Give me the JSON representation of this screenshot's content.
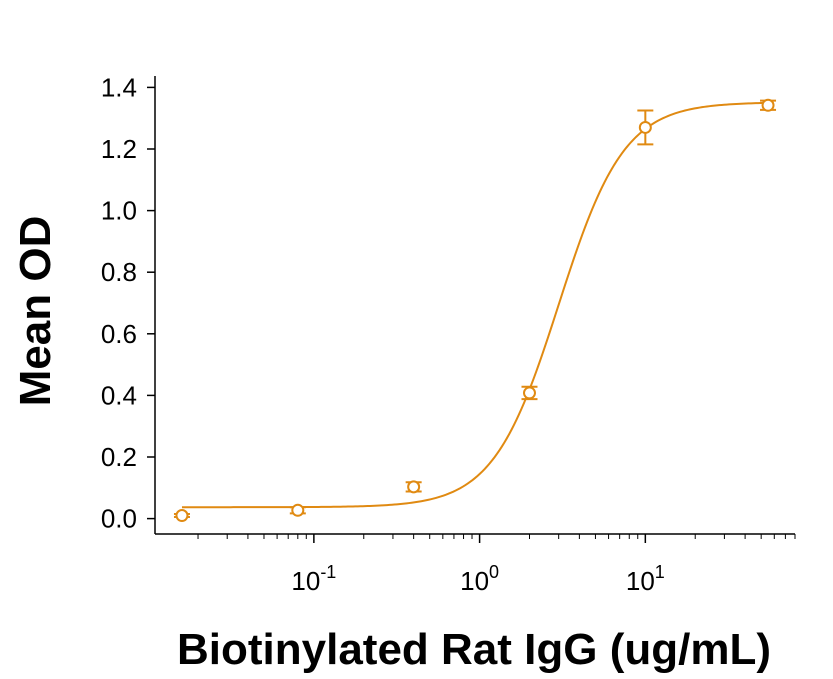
{
  "chart_data": {
    "type": "scatter",
    "xscale": "log",
    "xlabel": "Biotinylated Rat IgG (ug/mL)",
    "ylabel": "Mean OD",
    "xlim": [
      0.011,
      80
    ],
    "ylim": [
      -0.05,
      1.45
    ],
    "xticks_major": [
      {
        "value": 0.1,
        "base": "10",
        "exp": "-1"
      },
      {
        "value": 1,
        "base": "10",
        "exp": "0"
      },
      {
        "value": 10,
        "base": "10",
        "exp": "1"
      }
    ],
    "yticks": [
      {
        "value": 0.0,
        "label": "0.0"
      },
      {
        "value": 0.2,
        "label": "0.2"
      },
      {
        "value": 0.4,
        "label": "0.4"
      },
      {
        "value": 0.6,
        "label": "0.6"
      },
      {
        "value": 0.8,
        "label": "0.8"
      },
      {
        "value": 1.0,
        "label": "1.0"
      },
      {
        "value": 1.2,
        "label": "1.2"
      },
      {
        "value": 1.4,
        "label": "1.4"
      }
    ],
    "series": [
      {
        "color": "#E08A12",
        "marker": "open-circle",
        "points": [
          {
            "x": 0.016,
            "y": 0.01,
            "err": 0.005
          },
          {
            "x": 0.08,
            "y": 0.027,
            "err": 0.01
          },
          {
            "x": 0.4,
            "y": 0.103,
            "err": 0.015
          },
          {
            "x": 2.0,
            "y": 0.408,
            "err": 0.02
          },
          {
            "x": 10.0,
            "y": 1.27,
            "err": 0.055
          },
          {
            "x": 55.0,
            "y": 1.342,
            "err": 0.015
          }
        ],
        "fit": {
          "model": "4PL",
          "bottom": 0.037,
          "top": 1.352,
          "ec50": 3.0,
          "hill": 2.2
        }
      }
    ]
  }
}
